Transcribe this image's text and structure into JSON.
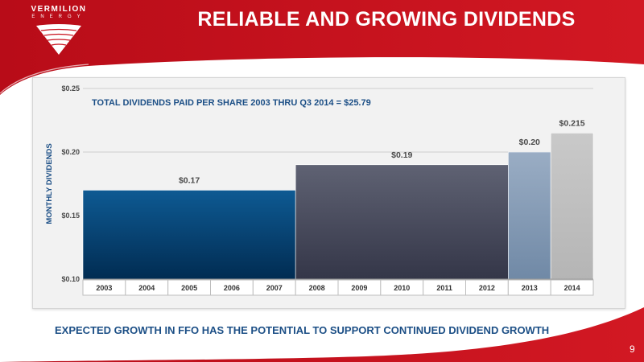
{
  "slide": {
    "title": "RELIABLE AND GROWING DIVIDENDS",
    "footer": "EXPECTED GROWTH IN FFO HAS THE POTENTIAL TO SUPPORT CONTINUED DIVIDEND GROWTH",
    "page_number": "9",
    "logo_name": "VERMILION",
    "logo_sub": "ENERGY"
  },
  "colors": {
    "brand_red": "#c9111e",
    "title_blue": "#1c4f86"
  },
  "chart_data": {
    "type": "bar",
    "title": "TOTAL DIVIDENDS PAID PER SHARE 2003 THRU Q3 2014 = $25.79",
    "ylabel": "MONTHLY DIVIDENDS",
    "xlabel": "",
    "ylim": [
      0.1,
      0.25
    ],
    "yticks": [
      0.1,
      0.15,
      0.2,
      0.25
    ],
    "ytick_labels": [
      "$0.10",
      "$0.15",
      "$0.20",
      "$0.25"
    ],
    "grid": true,
    "categories": [
      "2003",
      "2004",
      "2005",
      "2006",
      "2007",
      "2008",
      "2009",
      "2010",
      "2011",
      "2012",
      "2013",
      "2014"
    ],
    "values": [
      0.17,
      0.17,
      0.17,
      0.17,
      0.17,
      0.19,
      0.19,
      0.19,
      0.19,
      0.19,
      0.2,
      0.215
    ],
    "segments": [
      {
        "start": 0,
        "end": 4,
        "value": 0.17,
        "label": "$0.17",
        "color_top": "#0e5a93",
        "color_bottom": "#012c52"
      },
      {
        "start": 5,
        "end": 9,
        "value": 0.19,
        "label": "$0.19",
        "color_top": "#5f6273",
        "color_bottom": "#343648"
      },
      {
        "start": 10,
        "end": 10,
        "value": 0.2,
        "label": "$0.20",
        "color_top": "#9aadc4",
        "color_bottom": "#7089a6"
      },
      {
        "start": 11,
        "end": 11,
        "value": 0.215,
        "label": "$0.215",
        "color_top": "#c9c9c9",
        "color_bottom": "#b5b5b5"
      }
    ]
  }
}
